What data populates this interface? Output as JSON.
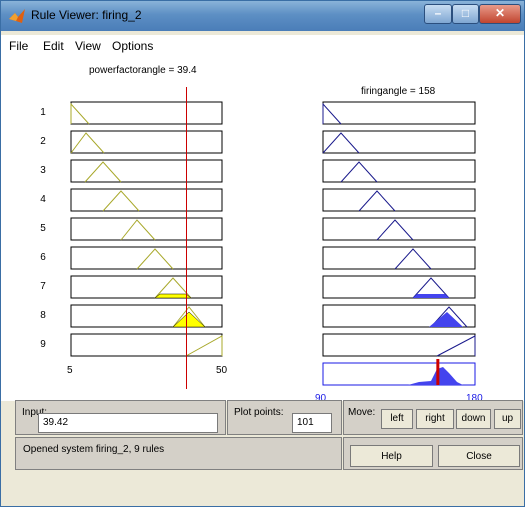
{
  "window": {
    "title": "Rule Viewer: firing_2"
  },
  "menu": [
    "File",
    "Edit",
    "View",
    "Options"
  ],
  "input_var": {
    "title": "powerfactorangle = 39.4",
    "min_label": "5",
    "max_label": "50",
    "range": [
      5,
      50
    ],
    "value": 39.42
  },
  "output_var": {
    "title": "firingangle = 158",
    "min_label": "90",
    "max_label": "180",
    "range": [
      90,
      180
    ],
    "value": 158
  },
  "rules": [
    "1",
    "2",
    "3",
    "4",
    "5",
    "6",
    "7",
    "8",
    "9"
  ],
  "controls": {
    "input_label": "Input:",
    "input_value": "39.42",
    "plot_points_label": "Plot points:",
    "plot_points_value": "101",
    "move_label": "Move:",
    "move_buttons": [
      "left",
      "right",
      "down",
      "up"
    ],
    "help_label": "Help",
    "close_label": "Close",
    "status_text": "Opened system firing_2, 9 rules"
  },
  "colors": {
    "input_mf": "#a8a82a",
    "input_fill": "#ffff00",
    "output_mf": "#1a1a8c",
    "output_fill": "#4444ee",
    "indicator": "#cc0000"
  }
}
